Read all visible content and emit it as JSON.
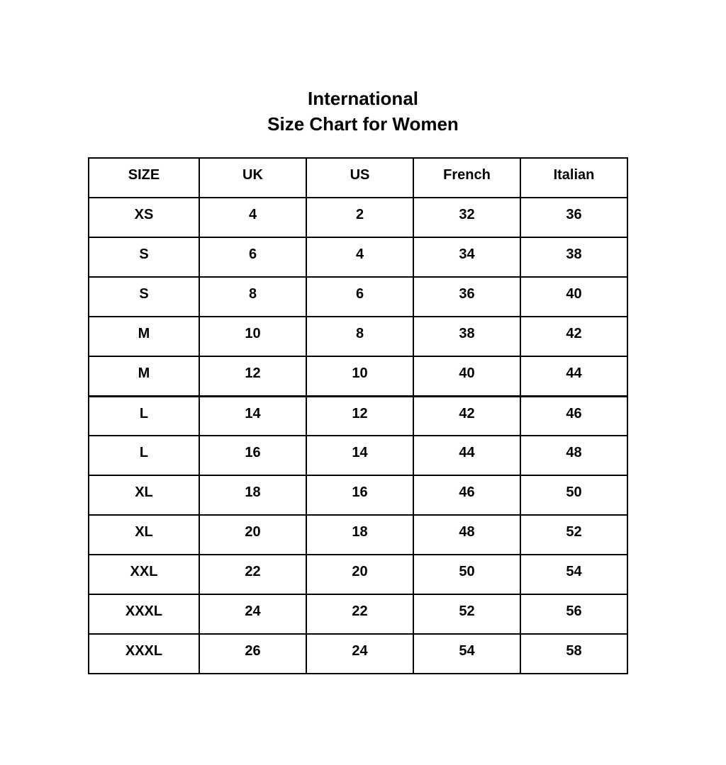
{
  "title": {
    "line1": "International",
    "line2": "Size Chart for Women"
  },
  "table": {
    "headers": [
      "SIZE",
      "UK",
      "US",
      "French",
      "Italian"
    ],
    "rows": [
      [
        "XS",
        "4",
        "2",
        "32",
        "36"
      ],
      [
        "S",
        "6",
        "4",
        "34",
        "38"
      ],
      [
        "S",
        "8",
        "6",
        "36",
        "40"
      ],
      [
        "M",
        "10",
        "8",
        "38",
        "42"
      ],
      [
        "M",
        "12",
        "10",
        "40",
        "44"
      ],
      [
        "L",
        "14",
        "12",
        "42",
        "46"
      ],
      [
        "L",
        "16",
        "14",
        "44",
        "48"
      ],
      [
        "XL",
        "18",
        "16",
        "46",
        "50"
      ],
      [
        "XL",
        "20",
        "18",
        "48",
        "52"
      ],
      [
        "XXL",
        "22",
        "20",
        "50",
        "54"
      ],
      [
        "XXXL",
        "24",
        "22",
        "52",
        "56"
      ],
      [
        "XXXL",
        "26",
        "24",
        "54",
        "58"
      ]
    ]
  }
}
